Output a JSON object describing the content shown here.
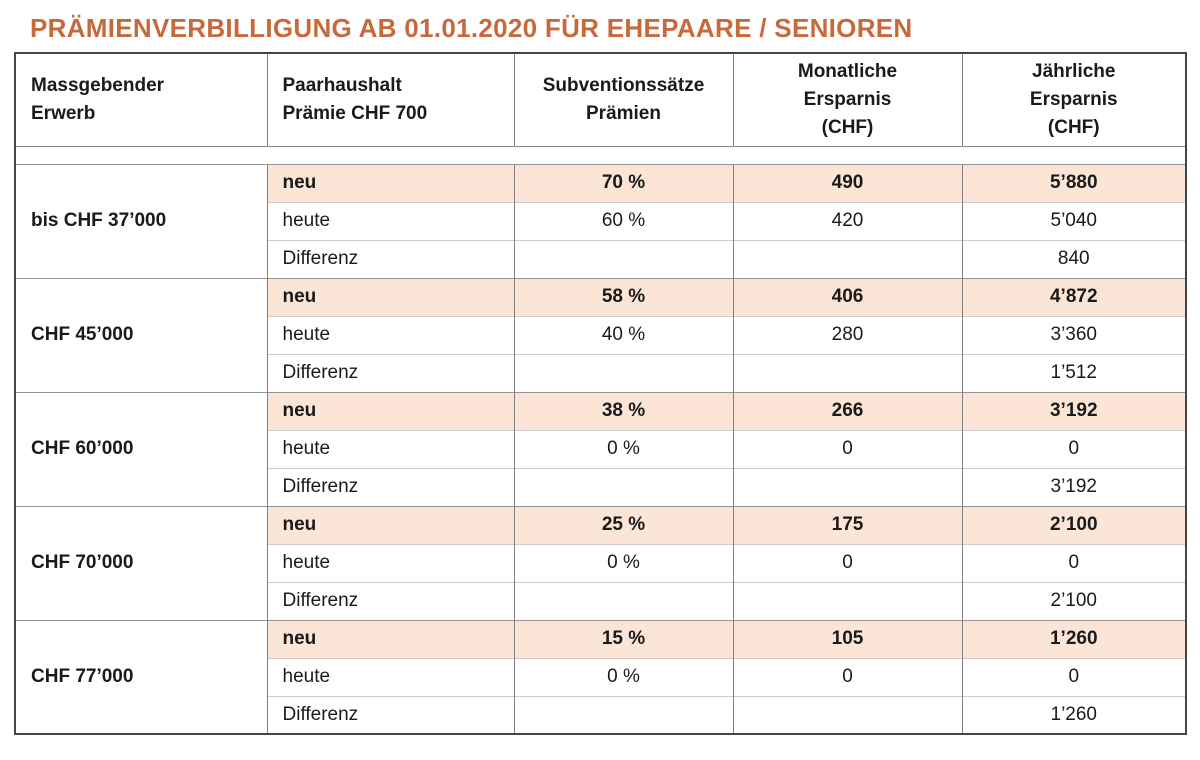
{
  "title": {
    "text": "PRÄMIENVERBILLIGUNG AB 01.01.2020 FÜR EHEPAARE / SENIOREN",
    "color": "#C8693C"
  },
  "colors": {
    "accent_orange": "#C8693C",
    "highlight_row_bg": "#FBE5D6",
    "outer_border": "#454545",
    "inner_border": "#808080"
  },
  "table": {
    "columns": [
      {
        "label": "Massgebender\nErwerb"
      },
      {
        "label": "Paarhaushalt\nPrämie CHF 700"
      },
      {
        "label": "Subventionssätze\nPrämien"
      },
      {
        "label": "Monatliche\nErsparnis\n(CHF)"
      },
      {
        "label": "Jährliche\nErsparnis\n(CHF)"
      }
    ],
    "groups": [
      {
        "label": "bis CHF 37’000",
        "rows": [
          {
            "label": "neu",
            "rate": "70 %",
            "monthly": "490",
            "yearly": "5’880"
          },
          {
            "label": "heute",
            "rate": "60 %",
            "monthly": "420",
            "yearly": "5’040"
          },
          {
            "label": "Differenz",
            "rate": "",
            "monthly": "",
            "yearly": "840"
          }
        ]
      },
      {
        "label": "CHF 45’000",
        "rows": [
          {
            "label": "neu",
            "rate": "58 %",
            "monthly": "406",
            "yearly": "4’872"
          },
          {
            "label": "heute",
            "rate": "40 %",
            "monthly": "280",
            "yearly": "3’360"
          },
          {
            "label": "Differenz",
            "rate": "",
            "monthly": "",
            "yearly": "1’512"
          }
        ]
      },
      {
        "label": "CHF 60’000",
        "rows": [
          {
            "label": "neu",
            "rate": "38 %",
            "monthly": "266",
            "yearly": "3’192"
          },
          {
            "label": "heute",
            "rate": "0 %",
            "monthly": "0",
            "yearly": "0"
          },
          {
            "label": "Differenz",
            "rate": "",
            "monthly": "",
            "yearly": "3’192"
          }
        ]
      },
      {
        "label": "CHF 70’000",
        "rows": [
          {
            "label": "neu",
            "rate": "25 %",
            "monthly": "175",
            "yearly": "2’100"
          },
          {
            "label": "heute",
            "rate": "0 %",
            "monthly": "0",
            "yearly": "0"
          },
          {
            "label": "Differenz",
            "rate": "",
            "monthly": "",
            "yearly": "2’100"
          }
        ]
      },
      {
        "label": "CHF 77’000",
        "rows": [
          {
            "label": "neu",
            "rate": "15 %",
            "monthly": "105",
            "yearly": "1’260"
          },
          {
            "label": "heute",
            "rate": "0 %",
            "monthly": "0",
            "yearly": "0"
          },
          {
            "label": "Differenz",
            "rate": "",
            "monthly": "",
            "yearly": "1’260"
          }
        ]
      }
    ]
  }
}
